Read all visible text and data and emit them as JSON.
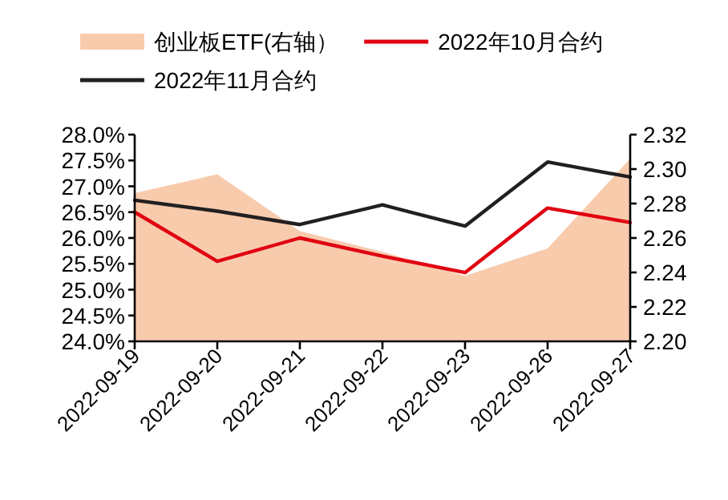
{
  "chart_data": {
    "type": "line",
    "categories": [
      "2022-09-19",
      "2022-09-20",
      "2022-09-21",
      "2022-09-22",
      "2022-09-23",
      "2022-09-26",
      "2022-09-27"
    ],
    "series": [
      {
        "name": "创业板ETF(右轴）",
        "type": "area",
        "axis": "y2",
        "color": "#f8cbad",
        "values": [
          2.286,
          2.297,
          2.264,
          2.252,
          2.238,
          2.254,
          2.306
        ]
      },
      {
        "name": "2022年10月合约",
        "color": "#e00010",
        "values": [
          26.5,
          25.55,
          26.0,
          25.65,
          25.33,
          26.58,
          26.3
        ]
      },
      {
        "name": "2022年11月合约",
        "color": "#231f20",
        "values": [
          26.73,
          26.52,
          26.26,
          26.64,
          26.23,
          27.47,
          27.18
        ]
      }
    ],
    "ylim": [
      24,
      28
    ],
    "yticks": [
      {
        "value": 24,
        "label": "24.0%"
      },
      {
        "value": 24.5,
        "label": "24.5%"
      },
      {
        "value": 25,
        "label": "25.0%"
      },
      {
        "value": 25.5,
        "label": "25.5%"
      },
      {
        "value": 26,
        "label": "26.0%"
      },
      {
        "value": 26.5,
        "label": "26.5%"
      },
      {
        "value": 27,
        "label": "27.0%"
      },
      {
        "value": 27.5,
        "label": "27.5%"
      },
      {
        "value": 28,
        "label": "28.0%"
      }
    ],
    "y2lim": [
      2.2,
      2.32
    ],
    "y2ticks": [
      {
        "value": 2.2,
        "label": "2.20"
      },
      {
        "value": 2.22,
        "label": "2.22"
      },
      {
        "value": 2.24,
        "label": "2.24"
      },
      {
        "value": 2.26,
        "label": "2.26"
      },
      {
        "value": 2.28,
        "label": "2.28"
      },
      {
        "value": 2.3,
        "label": "2.30"
      },
      {
        "value": 2.32,
        "label": "2.32"
      }
    ],
    "legend": "top",
    "grid": false
  }
}
